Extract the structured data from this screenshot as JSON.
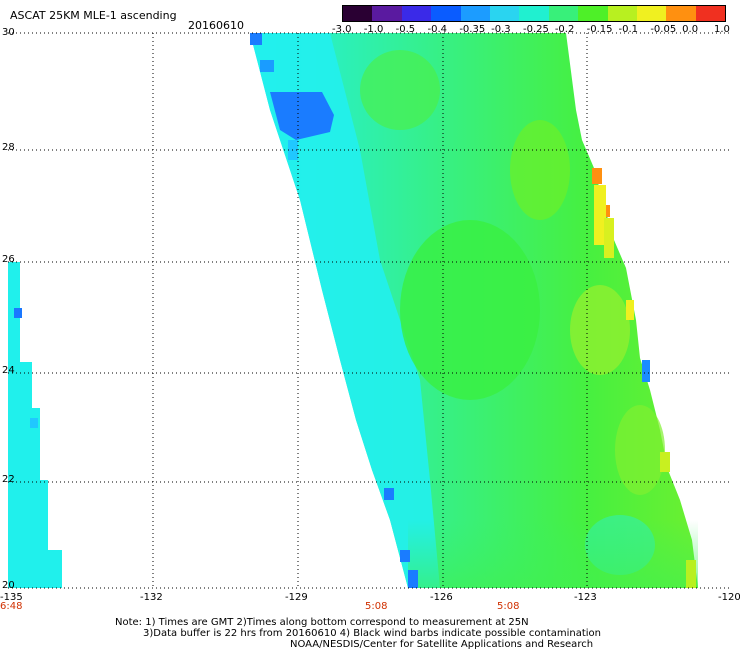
{
  "header": {
    "title": "ASCAT 25KM MLE-1 ascending",
    "date": "20160610"
  },
  "colorbar": {
    "labels": [
      "-3.0",
      "-1.0",
      "-0.5",
      "-0.4",
      "-0.35",
      "-0.3",
      "-0.25",
      "-0.2",
      "-0.15",
      "-0.1",
      "-0.05",
      "0.0",
      "1.0"
    ],
    "colors": [
      "#2a0033",
      "#5a1aa0",
      "#3a2ae8",
      "#0a5cff",
      "#1c9cff",
      "#2ad4f0",
      "#20f0d0",
      "#38f07a",
      "#4ef028",
      "#b8f020",
      "#f0f020",
      "#ff9010",
      "#f03020"
    ]
  },
  "map": {
    "lat_labels": [
      "30",
      "28",
      "26",
      "24",
      "22",
      "20"
    ],
    "lon_labels": [
      "-135",
      "-132",
      "-129",
      "-126",
      "-123",
      "-120"
    ],
    "times": [
      "6:48",
      "5:08",
      "5:08"
    ]
  },
  "notes": {
    "line1": "Note: 1) Times are GMT 2)Times along bottom correspond to measurement at 25N",
    "line2": "3)Data buffer is 22 hrs from 20160610 4) Black wind barbs indicate possible contamination",
    "line3": "NOAA/NESDIS/Center for Satellite Applications and Research"
  }
}
